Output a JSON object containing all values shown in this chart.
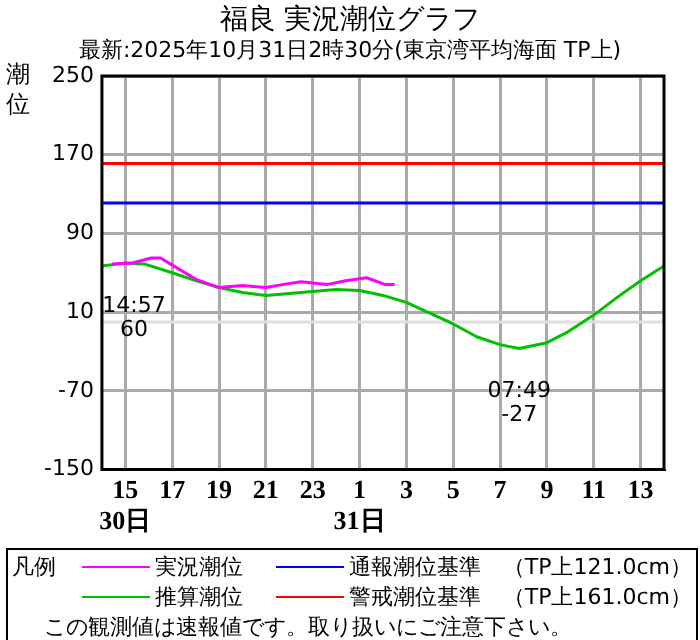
{
  "chart_data": {
    "type": "line",
    "title": "福良 実況潮位グラフ",
    "subtitle": "最新:2025年10月31日2時30分(東京湾平均海面 TP上)",
    "ylabel": "潮位",
    "legend_title": "凡例",
    "legend": "bottom",
    "grid": true,
    "marker": "none",
    "line_style": "solid",
    "xlim": [
      "2025-10-30T14:00",
      "2025-10-31T14:00"
    ],
    "xticks": [
      {
        "value": "2025-10-30T15:00",
        "label": "15\n30日"
      },
      {
        "value": "2025-10-30T17:00",
        "label": "17"
      },
      {
        "value": "2025-10-30T19:00",
        "label": "19"
      },
      {
        "value": "2025-10-30T21:00",
        "label": "21"
      },
      {
        "value": "2025-10-30T23:00",
        "label": "23"
      },
      {
        "value": "2025-10-31T01:00",
        "label": "1\n31日"
      },
      {
        "value": "2025-10-31T03:00",
        "label": "3"
      },
      {
        "value": "2025-10-31T05:00",
        "label": "5"
      },
      {
        "value": "2025-10-31T07:00",
        "label": "7"
      },
      {
        "value": "2025-10-31T09:00",
        "label": "9"
      },
      {
        "value": "2025-10-31T11:00",
        "label": "11"
      },
      {
        "value": "2025-10-31T13:00",
        "label": "13"
      }
    ],
    "ylim": [
      -150,
      250
    ],
    "yticks": [
      250,
      170,
      90,
      10,
      -70,
      -150
    ],
    "series": [
      {
        "name": "実況潮位",
        "color": "#ff00ff",
        "x": [
          "2025-10-30T14:26",
          "2025-10-30T15:18",
          "2025-10-30T16:06",
          "2025-10-30T16:30",
          "2025-10-30T17:12",
          "2025-10-30T18:03",
          "2025-10-30T19:00",
          "2025-10-30T20:00",
          "2025-10-30T21:00",
          "2025-10-30T21:42",
          "2025-10-30T22:30",
          "2025-10-30T23:36",
          "2025-10-31T00:24",
          "2025-10-31T01:18",
          "2025-10-31T02:06",
          "2025-10-31T02:30"
        ],
        "values": [
          59,
          60,
          65,
          65,
          55,
          43,
          35,
          37,
          35,
          38,
          41,
          38,
          42,
          45,
          38,
          38
        ]
      },
      {
        "name": "推算潮位",
        "color": "#00c000",
        "x": [
          "2025-10-30T14:00",
          "2025-10-30T15:00",
          "2025-10-30T15:48",
          "2025-10-30T17:00",
          "2025-10-30T18:00",
          "2025-10-30T19:00",
          "2025-10-30T20:00",
          "2025-10-30T21:00",
          "2025-10-30T22:00",
          "2025-10-30T23:00",
          "2025-10-31T00:00",
          "2025-10-31T01:00",
          "2025-10-31T02:00",
          "2025-10-31T03:00",
          "2025-10-31T04:00",
          "2025-10-31T05:00",
          "2025-10-31T06:00",
          "2025-10-31T07:00",
          "2025-10-31T07:49",
          "2025-10-31T09:00",
          "2025-10-31T09:54",
          "2025-10-31T11:00",
          "2025-10-31T12:00",
          "2025-10-31T13:00",
          "2025-10-31T14:00"
        ],
        "values": [
          57,
          60,
          59,
          50,
          42,
          35,
          30,
          27,
          29,
          31,
          33,
          32,
          27,
          20,
          9,
          -2,
          -15,
          -23,
          -27,
          -21,
          -10,
          7,
          25,
          42,
          57
        ]
      }
    ],
    "ref_lines": [
      {
        "axis": "y",
        "value": 121,
        "label": "通報潮位基準　（TP上121.0cm）",
        "color": "#0000ff"
      },
      {
        "axis": "y",
        "value": 161,
        "label": "警戒潮位基準　（TP上161.0cm）",
        "color": "#ff0000"
      },
      {
        "axis": "y",
        "value": 0,
        "color": "#e0e0e0"
      }
    ],
    "annotations": [
      {
        "text": "14:57\n60",
        "x": "2025-10-30T14:57",
        "y": 60
      },
      {
        "text": "07:49\n-27",
        "x": "2025-10-31T07:49",
        "y": -27
      },
      "この観測値は速報値です。取り扱いにご注意下さい。"
    ]
  }
}
